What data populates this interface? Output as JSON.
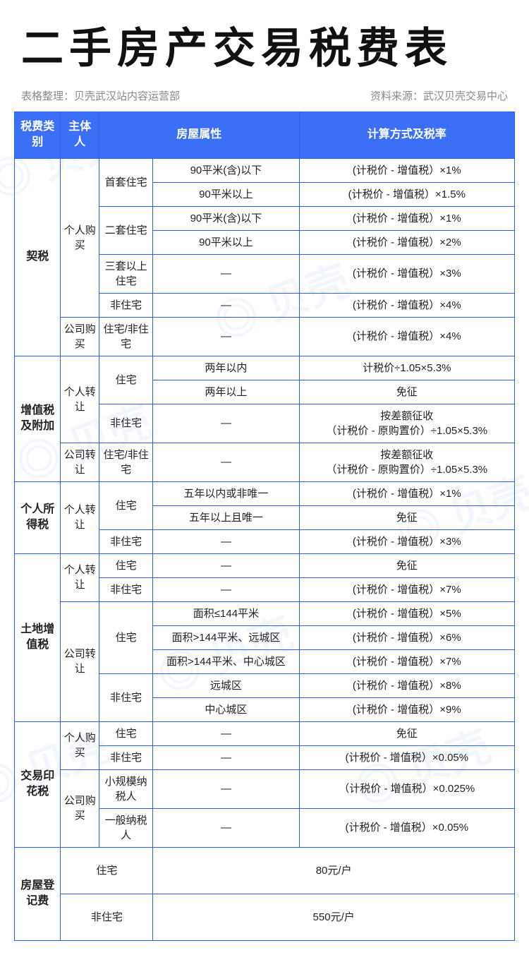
{
  "title": "二手房产交易税费表",
  "sub_left": "表格整理：贝壳武汉站内容运营部",
  "sub_right": "资料来源：武汉贝壳交易中心",
  "watermark_text": "◎ 贝壳",
  "colors": {
    "header_bg": "#3b6ff5",
    "border": "#2a5ff0",
    "text": "#222222",
    "subtext": "#888888",
    "watermark": "rgba(100,150,230,0.08)"
  },
  "headers": {
    "col1": "税费类别",
    "col2": "主体人",
    "col34": "房屋属性",
    "col5": "计算方式及税率"
  },
  "categories": {
    "qishui": "契税",
    "zengzhishui": "增值税及附加",
    "gerensuodeshui": "个人所得税",
    "tudizengzhishui": "土地增值税",
    "jiaoyiyinhuashui": "交易印花税",
    "fangwudengji": "房屋登记费"
  },
  "subjects": {
    "geren_goumai": "个人购买",
    "gongsi_goumai": "公司购买",
    "geren_zhuanrang": "个人转让",
    "gongsi_zhuanrang": "公司转让"
  },
  "prop_types": {
    "shoutao": "首套住宅",
    "ertao": "二套住宅",
    "santao": "三套以上住宅",
    "feizhuzhai": "非住宅",
    "zhuzhai": "住宅",
    "zhuzhai_fei": "住宅/非住宅",
    "xiaoguimo": "小规模纳税人",
    "yiban": "一般纳税人"
  },
  "rows": {
    "q1_attr": "90平米(含)以下",
    "q1_calc": "(计税价 - 增值税）×1%",
    "q2_attr": "90平米以上",
    "q2_calc": "(计税价 - 增值税）×1.5%",
    "q3_attr": "90平米(含)以下",
    "q3_calc": "(计税价 - 增值税）×1%",
    "q4_attr": "90平米以上",
    "q4_calc": "(计税价 - 增值税）×2%",
    "q5_attr": "—",
    "q5_calc": "(计税价 - 增值税）×3%",
    "q6_attr": "—",
    "q6_calc": "(计税价 - 增值税）×4%",
    "q7_attr": "—",
    "q7_calc": "(计税价 - 增值税）×4%",
    "z1_attr": "两年以内",
    "z1_calc": "计税价÷1.05×5.3%",
    "z2_attr": "两年以上",
    "z2_calc": "免征",
    "z3_attr": "—",
    "z3_calc": "按差额征收\n（计税价 - 原购置价）÷1.05×5.3%",
    "z4_attr": "—",
    "z4_calc": "按差额征收\n（计税价 - 原购置价）÷1.05×5.3%",
    "g1_attr": "五年以内或非唯一",
    "g1_calc": "(计税价 - 增值税）×1%",
    "g2_attr": "五年以上且唯一",
    "g2_calc": "免征",
    "g3_attr": "—",
    "g3_calc": "(计税价 - 增值税）×3%",
    "t1_attr": "—",
    "t1_calc": "免征",
    "t2_attr": "—",
    "t2_calc": "(计税价 - 增值税）×7%",
    "t3_attr": "面积≤144平米",
    "t3_calc": "(计税价 - 增值税）×5%",
    "t4_attr": "面积>144平米、远城区",
    "t4_calc": "(计税价 - 增值税）×6%",
    "t5_attr": "面积>144平米、中心城区",
    "t5_calc": "(计税价 - 增值税）×7%",
    "t6_attr": "远城区",
    "t6_calc": "(计税价 - 增值税）×8%",
    "t7_attr": "中心城区",
    "t7_calc": "(计税价 - 增值税）×9%",
    "y1_attr": "—",
    "y1_calc": "免征",
    "y2_attr": "—",
    "y2_calc": "(计税价 - 增值税）×0.05%",
    "y3_attr": "—",
    "y3_calc": "（计税价 - 增值税）×0.025%",
    "y4_attr": "—",
    "y4_calc": "(计税价 - 增值税）×0.05%",
    "d1_calc": "80元/户",
    "d2_calc": "550元/户"
  }
}
